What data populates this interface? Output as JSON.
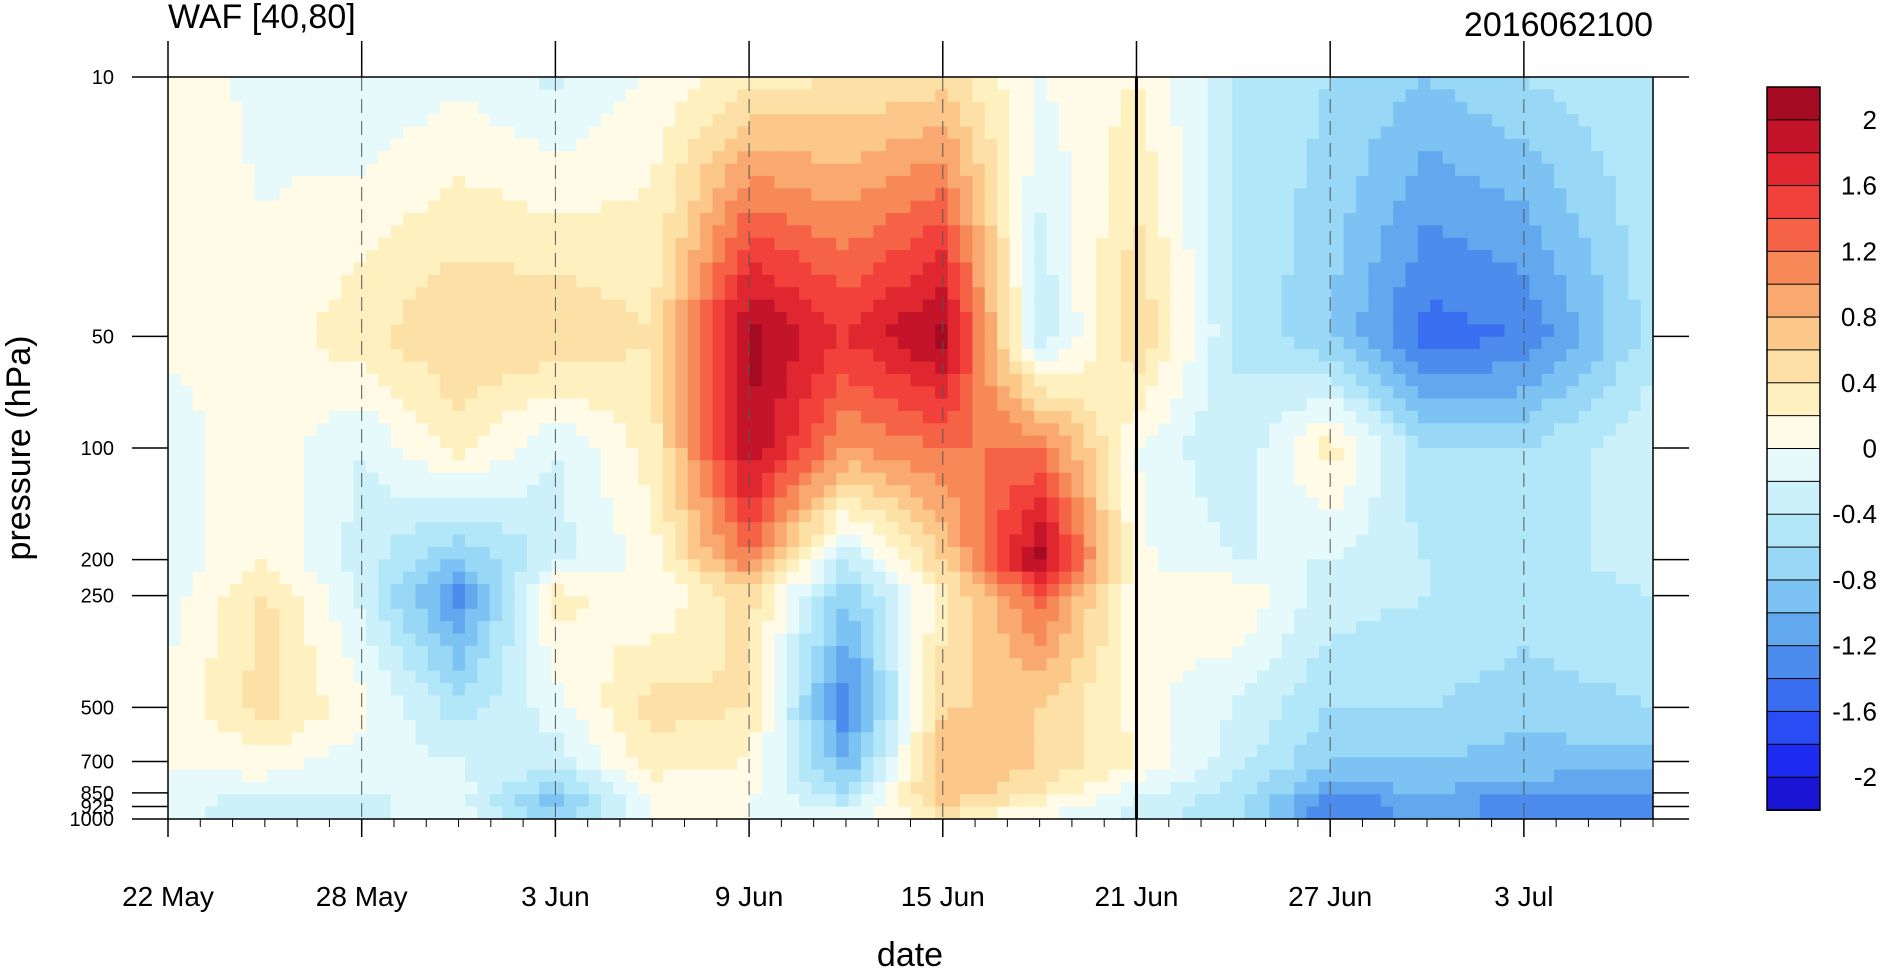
{
  "chart_data": {
    "type": "heatmap",
    "title": "WAF [40,80]",
    "subtitle": "2016062100",
    "xlabel": "date",
    "ylabel": "pressure (hPa)",
    "x_ticks": [
      "22 May",
      "28 May",
      "3 Jun",
      "9 Jun",
      "15 Jun",
      "21 Jun",
      "27 Jun",
      "3 Jul"
    ],
    "y_ticks": [
      "10",
      "50",
      "100",
      "200",
      "250",
      "500",
      "700",
      "850",
      "925",
      "1000"
    ],
    "y_scale": "log",
    "xlim": [
      "2016-05-22",
      "2016-07-07"
    ],
    "ylim": [
      1000,
      10
    ],
    "reference_date": "2016-06-21",
    "grid": "dashed vertical lines at labeled dates",
    "legend": "vertical colorbar on the right",
    "colorbar": {
      "levels": [
        -2.2,
        -2.0,
        -1.8,
        -1.6,
        -1.4,
        -1.2,
        -1.0,
        -0.8,
        -0.6,
        -0.4,
        -0.2,
        0.0,
        0.2,
        0.4,
        0.6,
        0.8,
        1.0,
        1.2,
        1.4,
        1.6,
        1.8,
        2.0,
        2.2
      ],
      "tick_labels": [
        "2",
        "1.6",
        "1.2",
        "0.8",
        "0.4",
        "0",
        "-0.4",
        "-0.8",
        "-1.2",
        "-1.6",
        "-2"
      ],
      "colors": [
        "#1a14d4",
        "#1e2cf2",
        "#2a4cf5",
        "#3a6ef0",
        "#4c8cec",
        "#62a8ee",
        "#7cc3f3",
        "#98d8f6",
        "#b2e6f9",
        "#ccf1fb",
        "#e6fafc",
        "#fffbe6",
        "#fff0c0",
        "#fde0a6",
        "#fbc88a",
        "#f9a870",
        "#f78858",
        "#f56246",
        "#f2403a",
        "#e0262f",
        "#c4142a",
        "#a40a22"
      ]
    },
    "series": [
      {
        "date": "2016-05-22",
        "pressure": [
          10,
          50,
          100,
          200,
          250,
          500,
          700,
          850,
          925,
          1000
        ],
        "values": [
          0.1,
          0.05,
          -0.1,
          -0.15,
          -0.1,
          0.05,
          0.0,
          -0.05,
          -0.1,
          -0.05
        ]
      },
      {
        "date": "2016-05-25",
        "pressure": [
          10,
          50,
          100,
          200,
          250,
          500,
          700,
          850,
          925,
          1000
        ],
        "values": [
          -0.05,
          0.05,
          0.15,
          0.2,
          0.45,
          0.5,
          0.1,
          -0.1,
          -0.5,
          -0.3
        ]
      },
      {
        "date": "2016-05-28",
        "pressure": [
          10,
          50,
          100,
          200,
          250,
          500,
          700,
          850,
          925,
          1000
        ],
        "values": [
          -0.2,
          0.35,
          -0.2,
          -0.3,
          -0.25,
          0.05,
          -0.1,
          -0.2,
          -0.3,
          -0.2
        ]
      },
      {
        "date": "2016-05-31",
        "pressure": [
          10,
          50,
          100,
          200,
          250,
          500,
          700,
          850,
          925,
          1000
        ],
        "values": [
          -0.05,
          0.6,
          0.3,
          -0.8,
          -1.3,
          -0.5,
          -0.2,
          -0.1,
          -0.1,
          -0.05
        ]
      },
      {
        "date": "2016-06-03",
        "pressure": [
          10,
          50,
          100,
          200,
          250,
          500,
          700,
          850,
          925,
          1000
        ],
        "values": [
          -0.25,
          0.6,
          -0.2,
          -0.3,
          0.3,
          -0.1,
          -0.3,
          -0.8,
          -1.0,
          -0.6
        ]
      },
      {
        "date": "2016-06-06",
        "pressure": [
          10,
          50,
          100,
          200,
          250,
          500,
          700,
          850,
          925,
          1000
        ],
        "values": [
          0.05,
          0.4,
          0.3,
          0.1,
          0.0,
          0.5,
          0.3,
          0.1,
          0.0,
          0.0
        ]
      },
      {
        "date": "2016-06-09",
        "pressure": [
          10,
          50,
          100,
          200,
          250,
          500,
          700,
          850,
          925,
          1000
        ],
        "values": [
          0.3,
          2.1,
          2.0,
          1.2,
          0.5,
          0.4,
          0.2,
          0.05,
          0.0,
          0.0
        ]
      },
      {
        "date": "2016-06-12",
        "pressure": [
          10,
          50,
          100,
          200,
          250,
          500,
          700,
          850,
          925,
          1000
        ],
        "values": [
          0.4,
          1.6,
          1.0,
          -0.4,
          -0.8,
          -1.4,
          -1.0,
          -0.6,
          -0.3,
          -0.1
        ]
      },
      {
        "date": "2016-06-15",
        "pressure": [
          10,
          50,
          100,
          200,
          250,
          500,
          700,
          850,
          925,
          1000
        ],
        "values": [
          0.5,
          2.1,
          1.2,
          0.6,
          0.3,
          0.6,
          0.8,
          0.8,
          0.6,
          0.3
        ]
      },
      {
        "date": "2016-06-18",
        "pressure": [
          10,
          50,
          100,
          200,
          250,
          500,
          700,
          850,
          925,
          1000
        ],
        "values": [
          0.0,
          -0.4,
          1.2,
          2.1,
          1.3,
          0.6,
          0.6,
          0.4,
          0.1,
          0.0
        ]
      },
      {
        "date": "2016-06-21",
        "pressure": [
          10,
          50,
          100,
          200,
          250,
          500,
          700,
          850,
          925,
          1000
        ],
        "values": [
          0.2,
          0.6,
          0.0,
          0.05,
          0.05,
          0.1,
          0.2,
          -0.1,
          -0.3,
          -0.2
        ]
      },
      {
        "date": "2016-06-24",
        "pressure": [
          10,
          50,
          100,
          200,
          250,
          500,
          700,
          850,
          925,
          1000
        ],
        "values": [
          -0.4,
          -0.4,
          -0.4,
          -0.2,
          0.2,
          -0.2,
          -0.3,
          -0.5,
          -0.6,
          -0.5
        ]
      },
      {
        "date": "2016-06-27",
        "pressure": [
          10,
          50,
          100,
          200,
          250,
          500,
          700,
          850,
          925,
          1000
        ],
        "values": [
          -0.6,
          -0.8,
          0.3,
          -0.2,
          -0.3,
          -0.6,
          -0.8,
          -1.1,
          -1.5,
          -1.2
        ]
      },
      {
        "date": "2016-06-30",
        "pressure": [
          10,
          50,
          100,
          200,
          250,
          500,
          700,
          850,
          925,
          1000
        ],
        "values": [
          -0.8,
          -1.5,
          -0.6,
          -0.4,
          -0.4,
          -0.6,
          -0.8,
          -1.0,
          -1.2,
          -1.0
        ]
      },
      {
        "date": "2016-07-03",
        "pressure": [
          10,
          50,
          100,
          200,
          250,
          500,
          700,
          850,
          925,
          1000
        ],
        "values": [
          -0.6,
          -1.4,
          -0.6,
          -0.5,
          -0.5,
          -0.7,
          -0.9,
          -1.1,
          -1.4,
          -1.2
        ]
      },
      {
        "date": "2016-07-07",
        "pressure": [
          10,
          50,
          100,
          200,
          250,
          500,
          700,
          850,
          925,
          1000
        ],
        "values": [
          -0.4,
          -0.5,
          -0.2,
          -0.3,
          -0.4,
          -0.6,
          -0.9,
          -1.2,
          -1.5,
          -1.3
        ]
      }
    ]
  }
}
